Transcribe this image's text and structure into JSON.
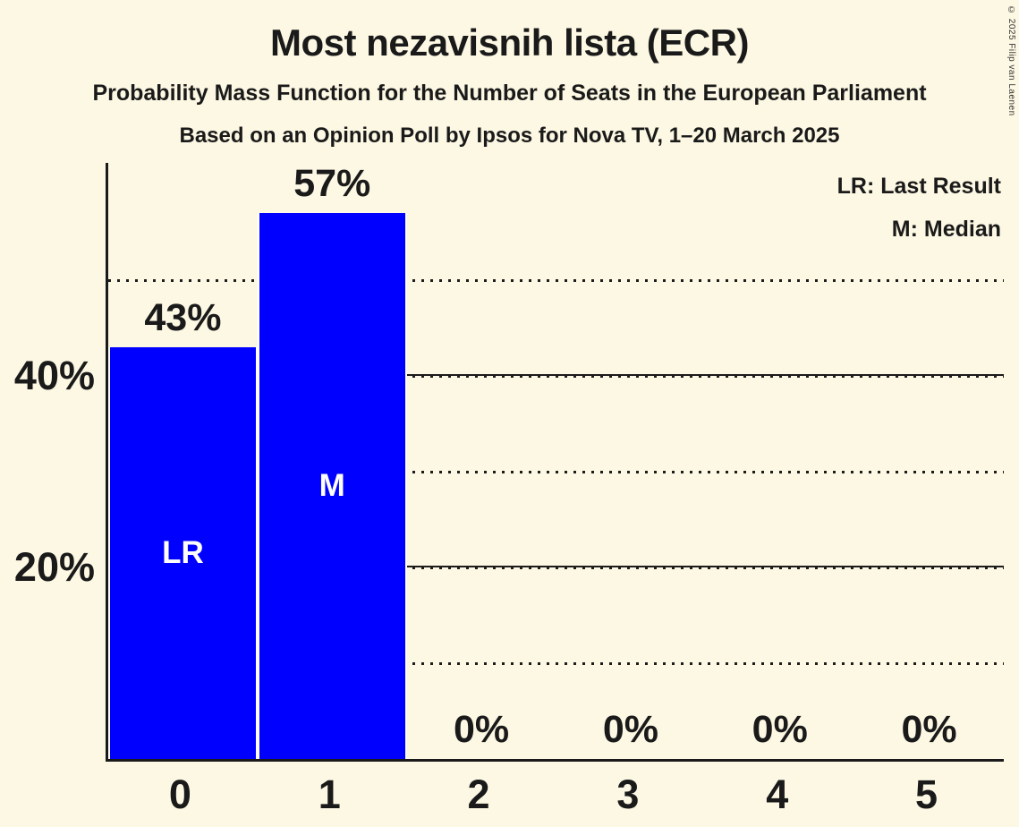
{
  "title": "Most nezavisnih lista (ECR)",
  "subtitle1": "Probability Mass Function for the Number of Seats in the European Parliament",
  "subtitle2": "Based on an Opinion Poll by Ipsos for Nova TV, 1–20 March 2025",
  "copyright": "© 2025 Filip van Laenen",
  "legend": {
    "lr": "LR: Last Result",
    "m": "M: Median"
  },
  "colors": {
    "background": "#FDF8E3",
    "bar": "#0000FF",
    "text": "#1A1A1A",
    "grid": "#1C1C1C",
    "bar_label": "#FFFFFF"
  },
  "chart_data": {
    "type": "bar",
    "title": "Most nezavisnih lista (ECR)",
    "categories": [
      "0",
      "1",
      "2",
      "3",
      "4",
      "5"
    ],
    "values": [
      43,
      57,
      0,
      0,
      0,
      0
    ],
    "value_labels": [
      "43%",
      "57%",
      "0%",
      "0%",
      "0%",
      "0%"
    ],
    "bar_annotations": [
      "LR",
      "M",
      "",
      "",
      "",
      ""
    ],
    "ylim": [
      0,
      62
    ],
    "yticks": [
      {
        "value": 10,
        "label": "",
        "style": "dotted"
      },
      {
        "value": 20,
        "label": "20%",
        "style": "solid"
      },
      {
        "value": 30,
        "label": "",
        "style": "dotted"
      },
      {
        "value": 40,
        "label": "40%",
        "style": "solid"
      },
      {
        "value": 50,
        "label": "",
        "style": "dotted"
      }
    ],
    "grid": "horizontal",
    "legend_position": "top-right"
  }
}
